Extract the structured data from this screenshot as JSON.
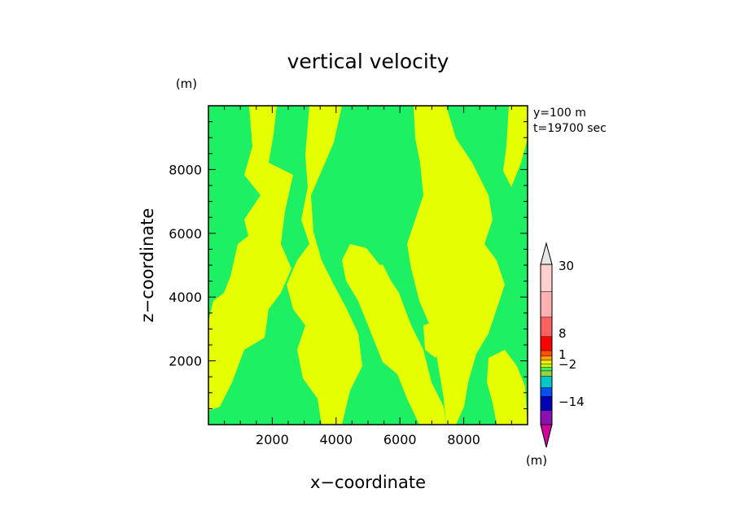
{
  "chart_data": {
    "type": "heatmap",
    "title": "vertical velocity",
    "xlabel": "x−coordinate",
    "ylabel": "z−coordinate",
    "x_unit": "(m)",
    "y_unit": "(m)",
    "annotations": [
      "y=100 m",
      "t=19700 sec"
    ],
    "xlim": [
      0,
      10000
    ],
    "ylim": [
      0,
      10000
    ],
    "xticks": [
      2000,
      4000,
      6000,
      8000
    ],
    "yticks": [
      2000,
      4000,
      6000,
      8000
    ],
    "xtick_labels": [
      "2000",
      "4000",
      "6000",
      "8000"
    ],
    "ytick_labels": [
      "2000",
      "4000",
      "6000",
      "8000"
    ],
    "colorbar": {
      "unit": "(m)",
      "levels": [
        -30,
        -14,
        -8,
        -2,
        -1,
        1,
        2,
        8,
        14,
        30
      ],
      "labels": [
        {
          "value": 30,
          "text": "30"
        },
        {
          "value": 8,
          "text": "8"
        },
        {
          "value": 1,
          "text": "1"
        },
        {
          "value": -2,
          "text": "−2"
        },
        {
          "value": -14,
          "text": "−14"
        }
      ],
      "colors": [
        "#d2009a",
        "#8a10b0",
        "#0000b4",
        "#0050f0",
        "#00c8c8",
        "#9ed238",
        "#3cf06e",
        "#c8ff00",
        "#f0f000",
        "#ffa000",
        "#ff5000",
        "#ff0000",
        "#ff6060",
        "#ffb0b0",
        "#ffd0d0",
        "#e6e6e6"
      ],
      "extend": "both"
    },
    "field": {
      "description_levels": "dominant values between -1 and 1 (green) and 1 and 2 (yellow)",
      "band_positive_color": "#e6ff00",
      "band_near_zero_color": "#1ef064",
      "x": [
        1000,
        3000,
        5000,
        7000,
        9000
      ],
      "z": [
        1000,
        3000,
        5000,
        7000,
        9000
      ],
      "values": [
        [
          0.8,
          1.4,
          0.6,
          1.5,
          0.7
        ],
        [
          1.3,
          1.6,
          0.9,
          1.4,
          0.6
        ],
        [
          0.7,
          1.2,
          1.5,
          0.8,
          1.3
        ],
        [
          0.6,
          1.5,
          0.4,
          1.6,
          0.8
        ],
        [
          0.5,
          1.4,
          0.3,
          1.5,
          0.7
        ]
      ]
    }
  }
}
